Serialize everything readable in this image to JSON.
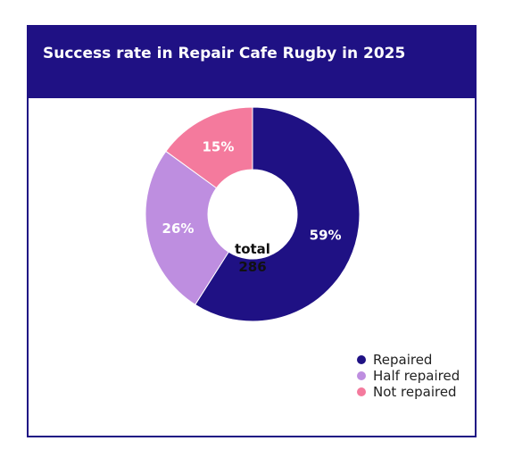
{
  "header": {
    "title": "Success rate in Repair Cafe Rugby in 2025"
  },
  "chart_data": {
    "type": "pie",
    "title": "Success rate in Repair Cafe Rugby in 2025",
    "center_label": "total",
    "total": 286,
    "slices": [
      {
        "name": "Repaired",
        "value": 59,
        "label": "59%",
        "color": "#1f1184"
      },
      {
        "name": "Half repaired",
        "value": 26,
        "label": "26%",
        "color": "#be8ee0"
      },
      {
        "name": "Not repaired",
        "value": 15,
        "label": "15%",
        "color": "#f47a9d"
      }
    ],
    "legend_position": "bottom-right"
  }
}
